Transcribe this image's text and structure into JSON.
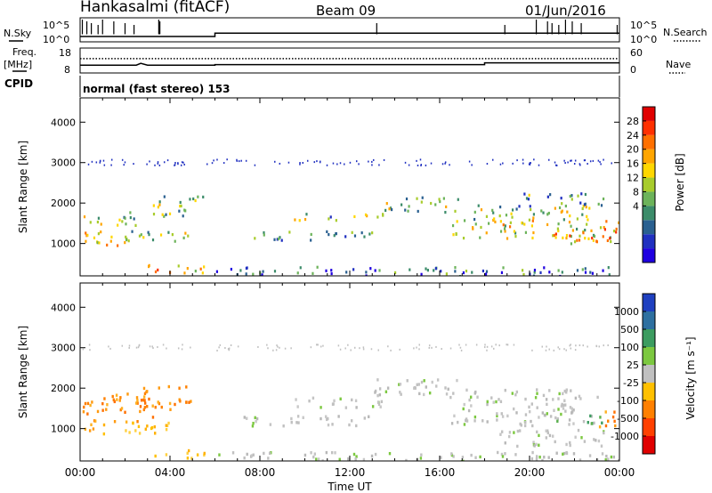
{
  "header": {
    "station": "Hankasalmi (fitACF)",
    "beam": "Beam 09",
    "date": "01/Jun/2016"
  },
  "left_labels": {
    "nsky": "N.Sky",
    "freq": "Freq.",
    "freq_unit": "[MHz]",
    "cpid": "CPID"
  },
  "right_labels": {
    "nsearch": "N.Search",
    "nave": "Nave"
  },
  "cpid_text": "normal (fast stereo) 153",
  "chart_data": [
    {
      "type": "line",
      "name": "noise-panel",
      "y_ticks_left": [
        "10^5",
        "10^0"
      ],
      "y_ticks_right": [
        "10^5",
        "10^0"
      ],
      "x_range_hours": [
        0,
        24
      ],
      "series": [
        {
          "name": "N.Sky",
          "style": "solid",
          "x": [
            0,
            6,
            6,
            24
          ],
          "y": [
            0.2,
            0.2,
            0.35,
            0.35
          ]
        }
      ],
      "spikes_hours": [
        0.1,
        0.3,
        0.5,
        0.8,
        1.0,
        1.5,
        2.0,
        2.4,
        3.5,
        3.55,
        13.2,
        18.9,
        20.3,
        20.8,
        21.0,
        21.3,
        21.6,
        21.9,
        22.3,
        23.9
      ]
    },
    {
      "type": "line",
      "name": "freq-nave-panel",
      "left_axis": {
        "ticks": [
          "18",
          "8"
        ]
      },
      "right_axis": {
        "ticks": [
          "60",
          "0"
        ]
      },
      "series": [
        {
          "name": "Freq",
          "style": "solid",
          "x": [
            0,
            2.5,
            2.7,
            3.0,
            6,
            6,
            18,
            18,
            24
          ],
          "y": [
            11.0,
            11.0,
            11.8,
            11.0,
            11.0,
            11.2,
            11.2,
            12.0,
            12.0
          ]
        },
        {
          "name": "Nave",
          "style": "dotted",
          "x": [
            0,
            24
          ],
          "y": [
            35,
            35
          ]
        }
      ]
    },
    {
      "type": "heatmap",
      "name": "power-panel",
      "ylabel": "Slant Range [km]",
      "y_ticks": [
        1000,
        2000,
        3000,
        4000
      ],
      "ylim": [
        200,
        4600
      ],
      "x_range_hours": [
        0,
        24
      ],
      "colorbar": {
        "label": "Power [dB]",
        "ticks": [
          "28",
          "24",
          "20",
          "16",
          "12",
          "8",
          "4"
        ],
        "colors": [
          "#1f00e0",
          "#2030c0",
          "#2a6090",
          "#3c8c6a",
          "#6cb35a",
          "#a8cc2c",
          "#ffd700",
          "#ffa500",
          "#ff7000",
          "#ff3000",
          "#e00000"
        ]
      },
      "regions": [
        {
          "t0": 0.0,
          "t1": 0.9,
          "r0": 900,
          "r1": 1800,
          "level": 0.55
        },
        {
          "t0": 0.8,
          "t1": 2.2,
          "r0": 950,
          "r1": 1300,
          "level": 0.7
        },
        {
          "t0": 1.0,
          "t1": 2.5,
          "r0": 1400,
          "r1": 1800,
          "level": 0.45
        },
        {
          "t0": 2.0,
          "t1": 5.2,
          "r0": 1050,
          "r1": 1350,
          "level": 0.4
        },
        {
          "t0": 3.0,
          "t1": 5.0,
          "r0": 1700,
          "r1": 2200,
          "level": 0.4
        },
        {
          "t0": 4.5,
          "t1": 5.5,
          "r0": 2000,
          "r1": 2300,
          "level": 0.35
        },
        {
          "t0": 2.0,
          "t1": 5.5,
          "r0": 300,
          "r1": 500,
          "level": 0.6
        },
        {
          "t0": 7.5,
          "t1": 13.0,
          "r0": 1100,
          "r1": 1350,
          "level": 0.35
        },
        {
          "t0": 9.5,
          "t1": 13.5,
          "r0": 1600,
          "r1": 1800,
          "level": 0.4
        },
        {
          "t0": 13.5,
          "t1": 17.0,
          "r0": 1800,
          "r1": 2200,
          "level": 0.45
        },
        {
          "t0": 16.5,
          "t1": 24.0,
          "r0": 1100,
          "r1": 1600,
          "level": 0.55
        },
        {
          "t0": 17.0,
          "t1": 23.0,
          "r0": 1600,
          "r1": 2000,
          "level": 0.45
        },
        {
          "t0": 19.5,
          "t1": 23.5,
          "r0": 1950,
          "r1": 2300,
          "level": 0.35
        },
        {
          "t0": 21.0,
          "t1": 24.0,
          "r0": 1000,
          "r1": 1400,
          "level": 0.65
        },
        {
          "t0": 6.0,
          "t1": 24.0,
          "r0": 220,
          "r1": 450,
          "level": 0.25
        }
      ]
    },
    {
      "type": "heatmap",
      "name": "velocity-panel",
      "ylabel": "Slant Range [km]",
      "xlabel": "Time UT",
      "x_ticks": [
        "00:00",
        "04:00",
        "08:00",
        "12:00",
        "16:00",
        "20:00",
        "00:00"
      ],
      "y_ticks": [
        1000,
        2000,
        3000,
        4000
      ],
      "ylim": [
        200,
        4600
      ],
      "x_range_hours": [
        0,
        24
      ],
      "colorbar": {
        "label": "Velocity [m s⁻¹]",
        "ticks": [
          "1000",
          "500",
          "100",
          "25",
          "-25",
          "-100",
          "-500",
          "-1000"
        ],
        "colors": [
          "#1f40c0",
          "#2e70a0",
          "#3c9c60",
          "#7cc840",
          "#c0c0c0",
          "#ffc000",
          "#ff8000",
          "#ff4000",
          "#e00000"
        ]
      },
      "regions": [
        {
          "t0": 0.0,
          "t1": 1.0,
          "r0": 900,
          "r1": 1700,
          "cls": "neg"
        },
        {
          "t0": 0.9,
          "t1": 3.2,
          "r0": 1200,
          "r1": 1900,
          "cls": "neg"
        },
        {
          "t0": 1.0,
          "t1": 4.5,
          "r0": 900,
          "r1": 1200,
          "cls": "negweak"
        },
        {
          "t0": 2.5,
          "t1": 5.0,
          "r0": 1500,
          "r1": 2100,
          "cls": "neg"
        },
        {
          "t0": 3.0,
          "t1": 5.5,
          "r0": 300,
          "r1": 500,
          "cls": "negweak"
        },
        {
          "t0": 7.0,
          "t1": 13.0,
          "r0": 1100,
          "r1": 1350,
          "cls": "gray"
        },
        {
          "t0": 9.0,
          "t1": 13.5,
          "r0": 1550,
          "r1": 1800,
          "cls": "gray"
        },
        {
          "t0": 13.0,
          "t1": 17.0,
          "r0": 1800,
          "r1": 2250,
          "cls": "gray"
        },
        {
          "t0": 16.5,
          "t1": 22.5,
          "r0": 1100,
          "r1": 1600,
          "cls": "gray"
        },
        {
          "t0": 17.0,
          "t1": 23.0,
          "r0": 1600,
          "r1": 2000,
          "cls": "gray"
        },
        {
          "t0": 18.5,
          "t1": 23.5,
          "r0": 600,
          "r1": 1000,
          "cls": "gray"
        },
        {
          "t0": 21.0,
          "t1": 23.2,
          "r0": 1150,
          "r1": 1400,
          "cls": "pos"
        },
        {
          "t0": 23.0,
          "t1": 24.0,
          "r0": 1050,
          "r1": 1500,
          "cls": "neg"
        },
        {
          "t0": 6.0,
          "t1": 24.0,
          "r0": 220,
          "r1": 450,
          "cls": "gray"
        }
      ]
    }
  ]
}
